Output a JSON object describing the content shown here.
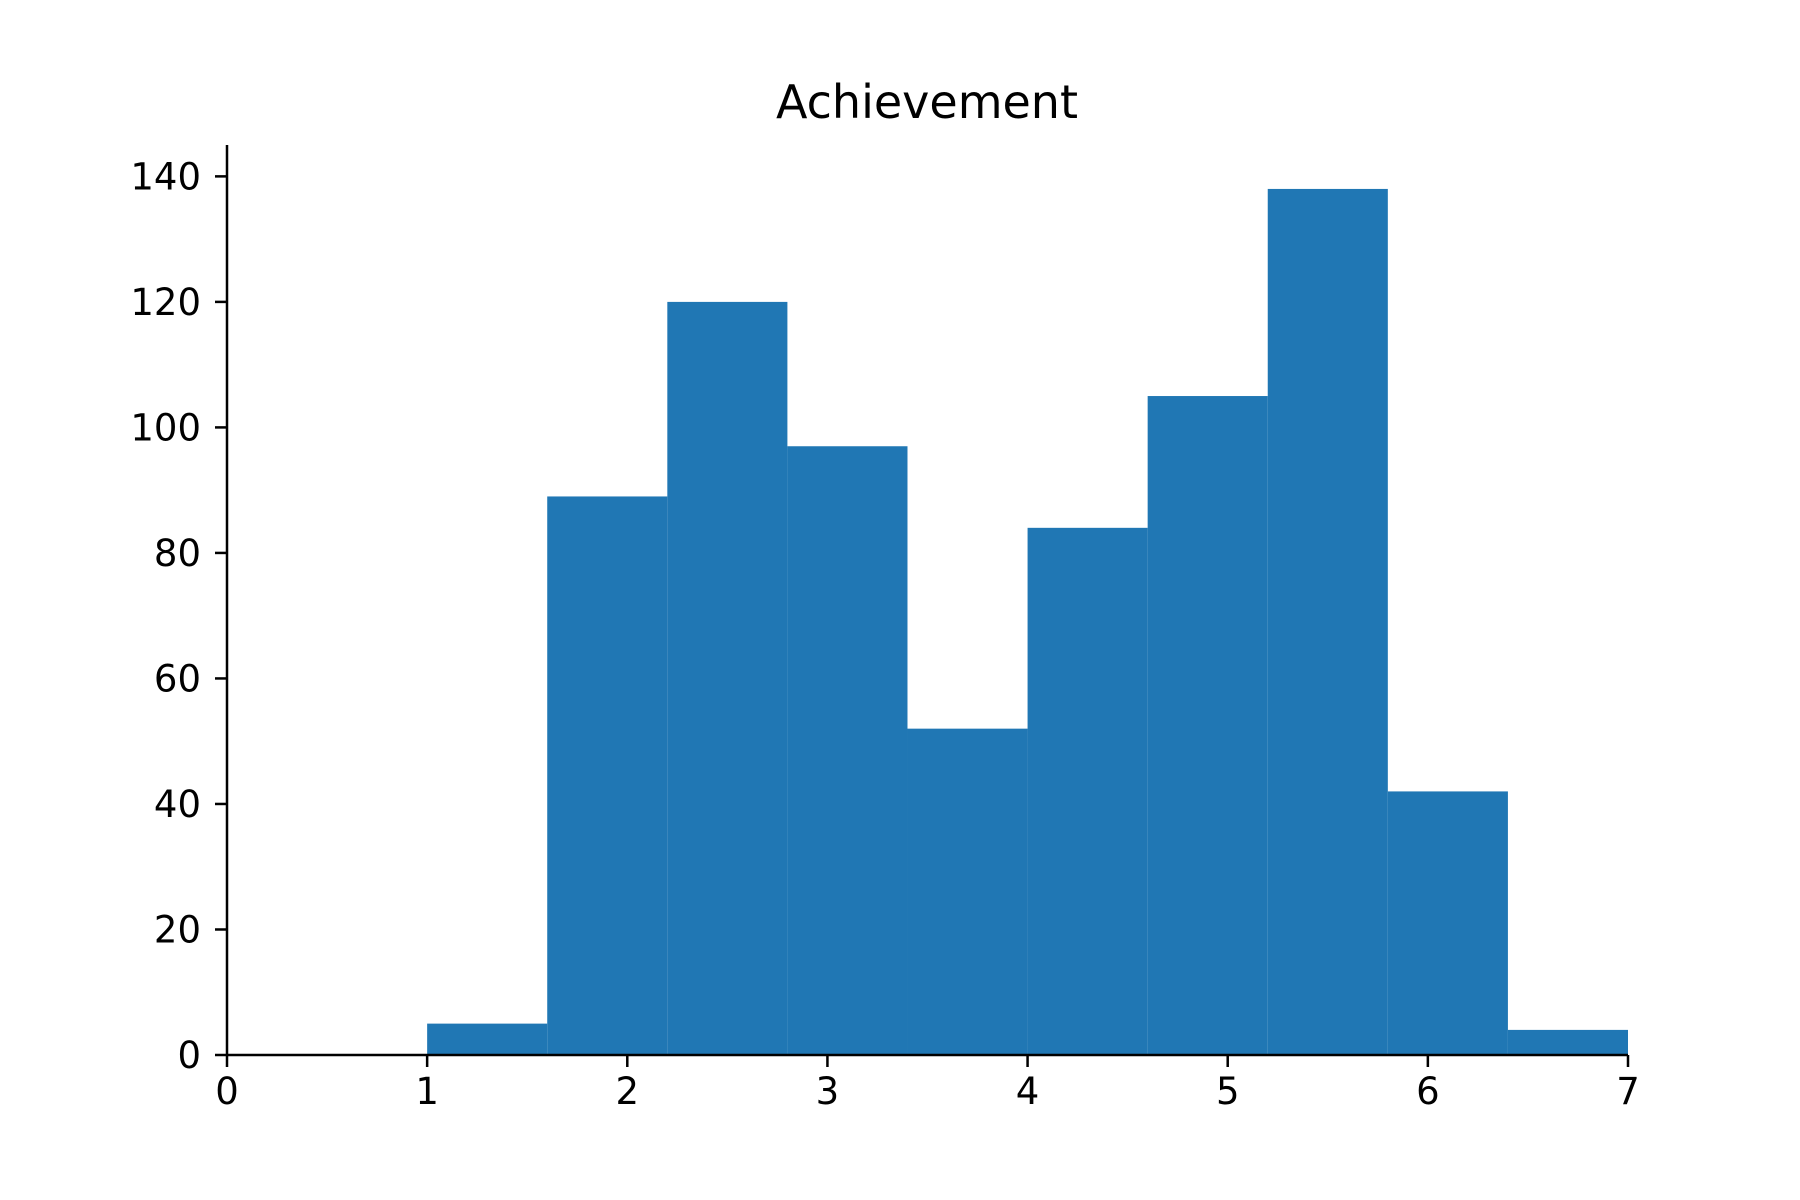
{
  "chart_data": {
    "type": "bar",
    "subtype": "histogram",
    "title": "Achievement",
    "xlabel": "",
    "ylabel": "",
    "bins": [
      {
        "start": 1.0,
        "end": 1.6,
        "count": 5
      },
      {
        "start": 1.6,
        "end": 2.2,
        "count": 89
      },
      {
        "start": 2.2,
        "end": 2.8,
        "count": 120
      },
      {
        "start": 2.8,
        "end": 3.4,
        "count": 97
      },
      {
        "start": 3.4,
        "end": 4.0,
        "count": 52
      },
      {
        "start": 4.0,
        "end": 4.6,
        "count": 84
      },
      {
        "start": 4.6,
        "end": 5.2,
        "count": 105
      },
      {
        "start": 5.2,
        "end": 5.8,
        "count": 138
      },
      {
        "start": 5.8,
        "end": 6.4,
        "count": 42
      },
      {
        "start": 6.4,
        "end": 7.0,
        "count": 4
      }
    ],
    "xlim": [
      0,
      7
    ],
    "ylim": [
      0,
      145
    ],
    "xticks": [
      "0",
      "1",
      "2",
      "3",
      "4",
      "5",
      "6",
      "7"
    ],
    "yticks": [
      "0",
      "20",
      "40",
      "60",
      "80",
      "100",
      "120",
      "140"
    ],
    "bar_color": "#2077b4",
    "grid": false,
    "legend": "none",
    "spines": "left-bottom"
  }
}
